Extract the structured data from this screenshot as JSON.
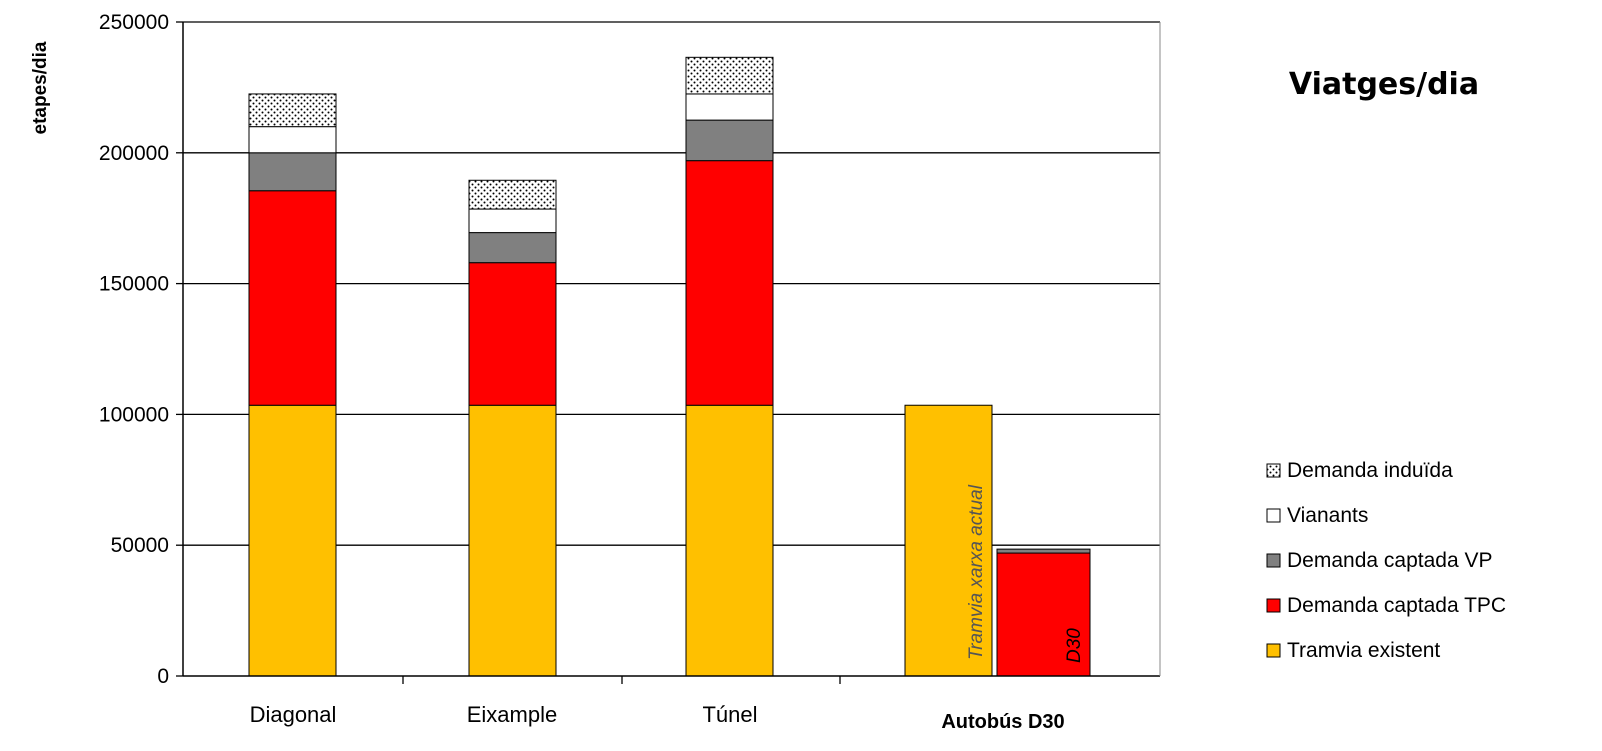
{
  "chart_data": {
    "type": "bar",
    "stacked": true,
    "title": "Viatges/dia",
    "ylabel": "etapes/dia",
    "ylim": [
      0,
      250000
    ],
    "yticks": [
      "0",
      "50000",
      "100000",
      "150000",
      "200000",
      "250000"
    ],
    "grid": true,
    "legend_position": "right",
    "categories": [
      "Diagonal",
      "Eixample",
      "Túnel",
      "Autobús D30"
    ],
    "series": [
      {
        "name": "Tramvia existent",
        "color": "#FFC000",
        "values": [
          103500,
          103500,
          103500,
          103500
        ]
      },
      {
        "name": "Demanda captada TPC",
        "color": "#FF0000",
        "values": [
          82000,
          54500,
          93500,
          47000
        ]
      },
      {
        "name": "Demanda captada VP",
        "color": "#808080",
        "values": [
          14500,
          11500,
          15500,
          1500
        ]
      },
      {
        "name": "Vianants",
        "color": "#FFFFFF",
        "values": [
          10000,
          9000,
          10000,
          0
        ]
      },
      {
        "name": "Demanda induïda",
        "color": "#FFFFFF",
        "pattern": "dots",
        "values": [
          12500,
          11000,
          14000,
          0
        ]
      }
    ],
    "legend_order": [
      "Demanda induïda",
      "Vianants",
      "Demanda captada VP",
      "Demanda captada TPC",
      "Tramvia existent"
    ],
    "annotations": [
      "Tramvia xarxa actual",
      "D30"
    ]
  }
}
